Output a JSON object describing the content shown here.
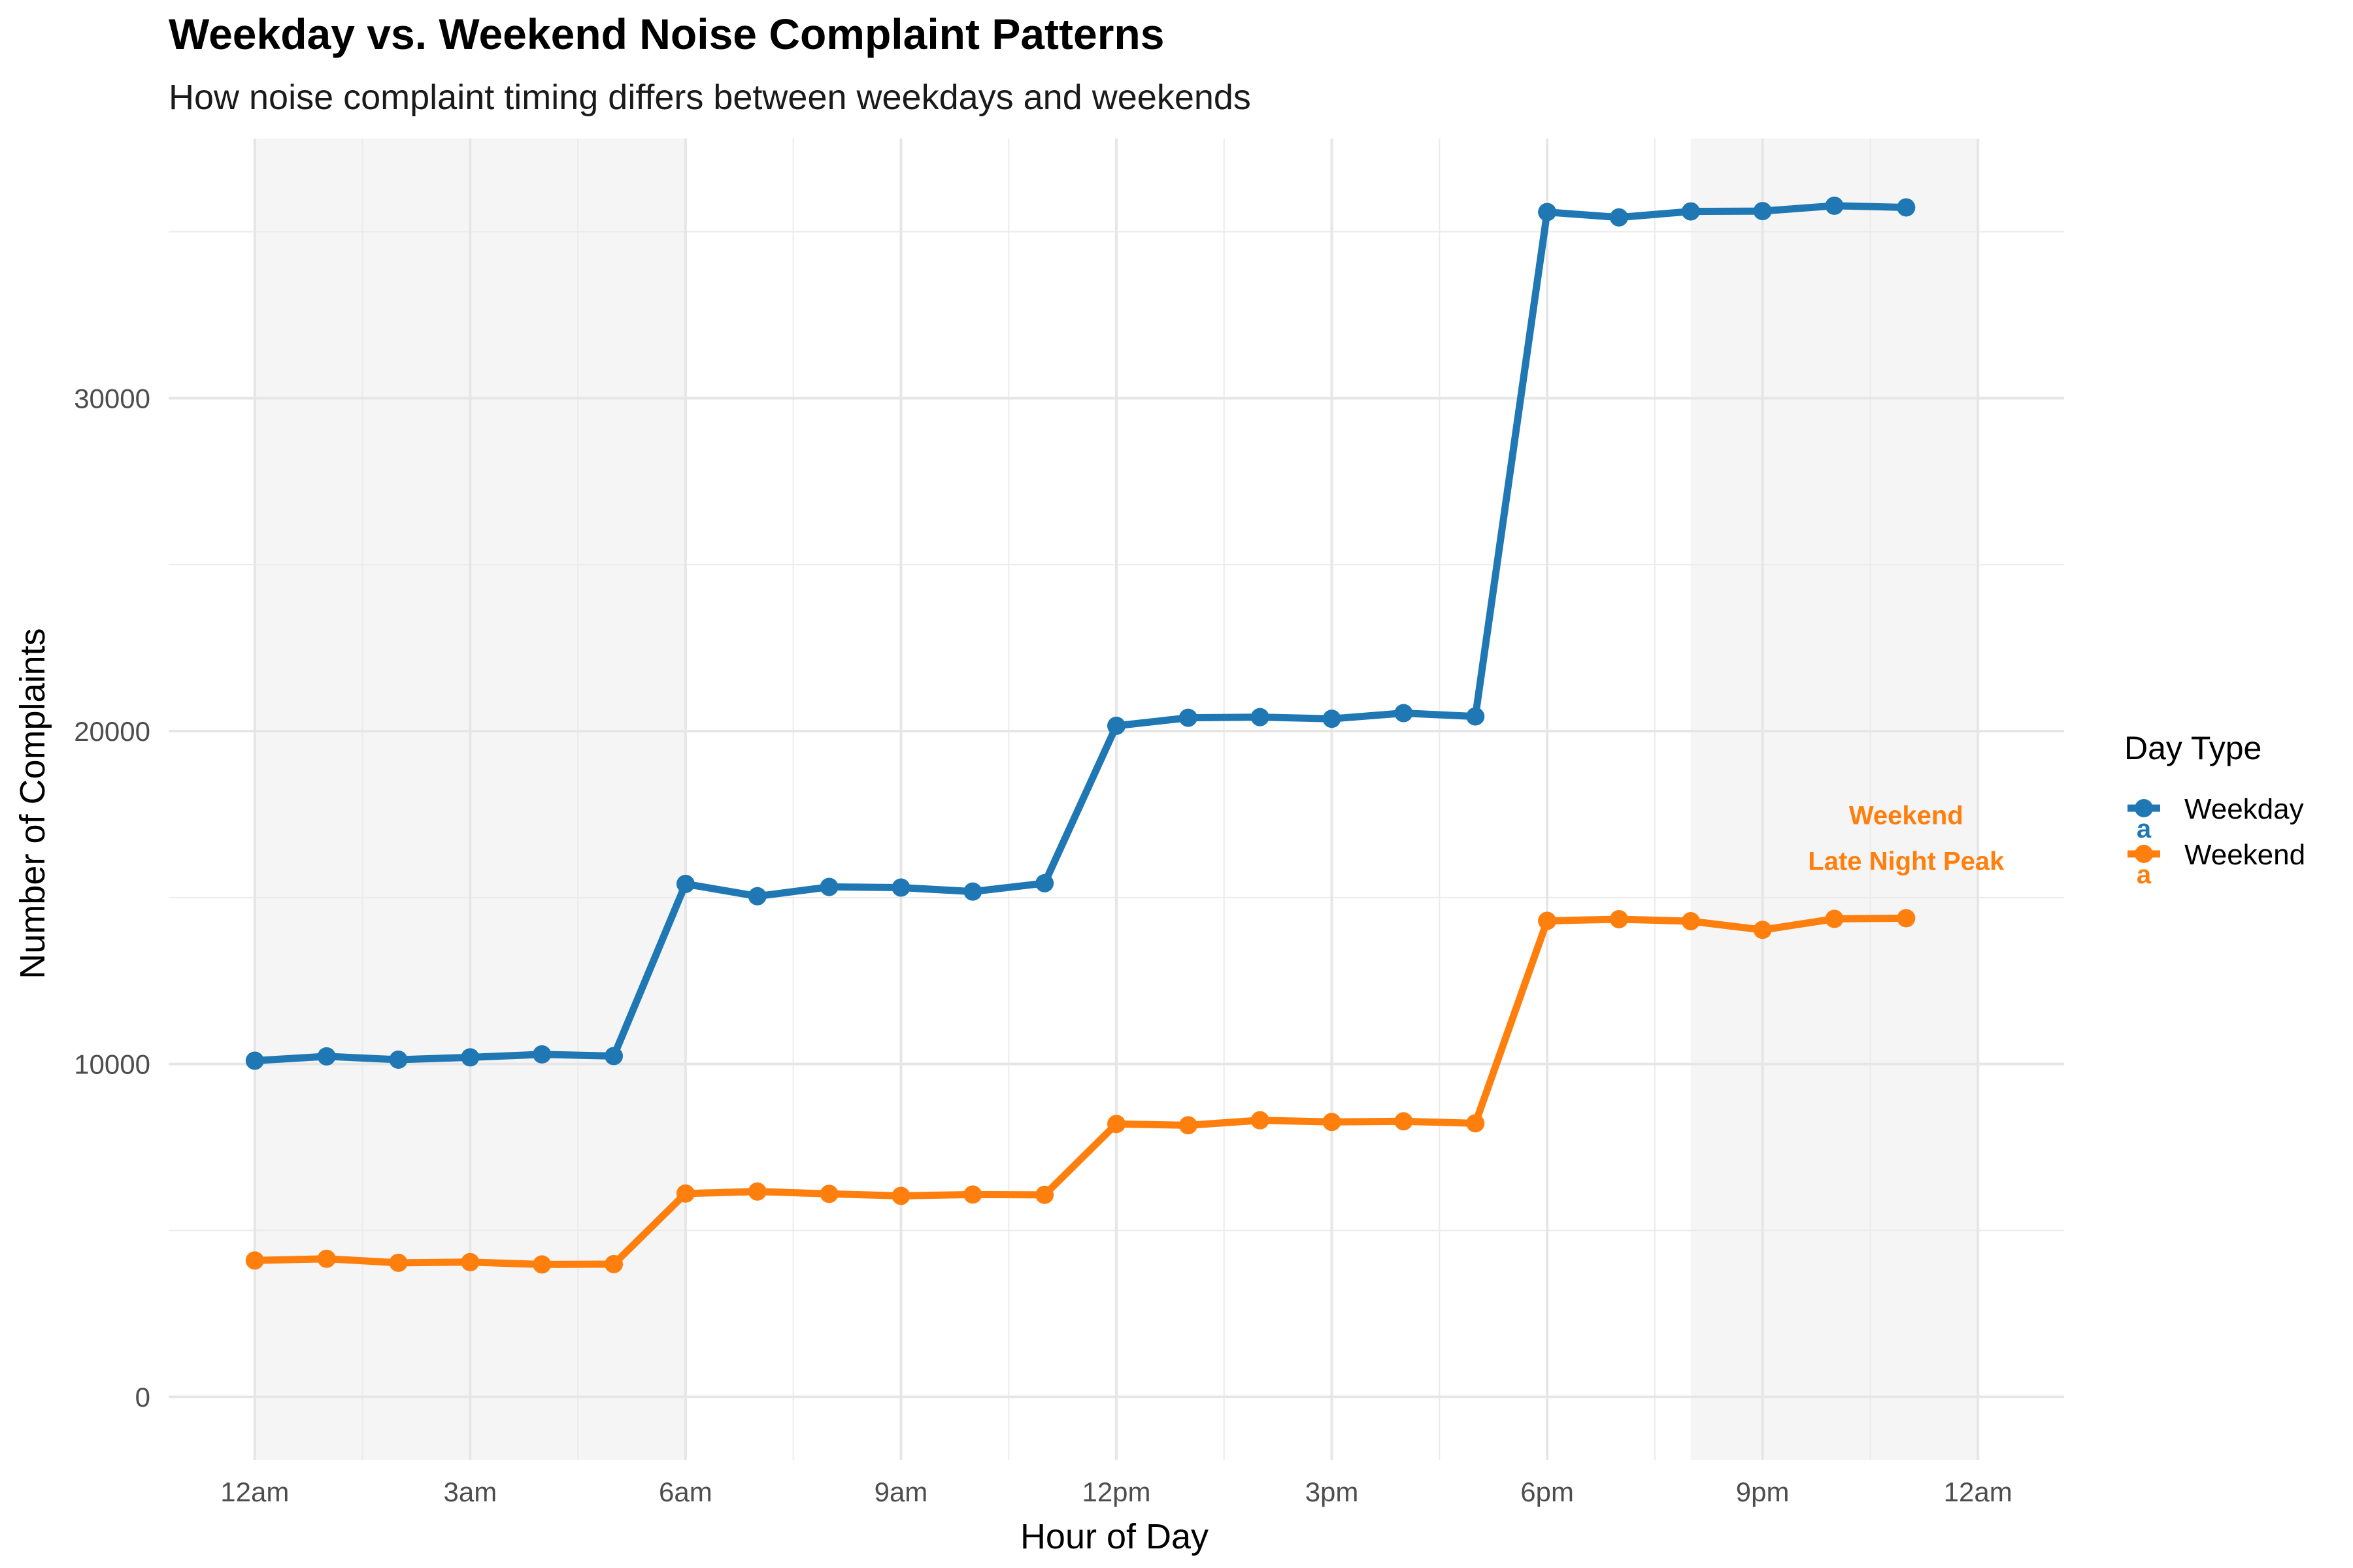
{
  "chart_data": {
    "type": "line",
    "title": "Weekday vs. Weekend Noise Complaint Patterns",
    "subtitle": "How noise complaint timing differs between weekdays and weekends",
    "xlabel": "Hour of Day",
    "ylabel": "Number of Complaints",
    "x": [
      0,
      1,
      2,
      3,
      4,
      5,
      6,
      7,
      8,
      9,
      10,
      11,
      12,
      13,
      14,
      15,
      16,
      17,
      18,
      19,
      20,
      21,
      22,
      23
    ],
    "xlim": [
      -1.2,
      25.2
    ],
    "ylim": [
      -1900,
      37800
    ],
    "x_ticks": [
      {
        "value": 0,
        "label": "12am"
      },
      {
        "value": 3,
        "label": "3am"
      },
      {
        "value": 6,
        "label": "6am"
      },
      {
        "value": 9,
        "label": "9am"
      },
      {
        "value": 12,
        "label": "12pm"
      },
      {
        "value": 15,
        "label": "3pm"
      },
      {
        "value": 18,
        "label": "6pm"
      },
      {
        "value": 21,
        "label": "9pm"
      },
      {
        "value": 24,
        "label": "12am"
      }
    ],
    "y_ticks": [
      {
        "value": 0,
        "label": "0"
      },
      {
        "value": 10000,
        "label": "10000"
      },
      {
        "value": 20000,
        "label": "20000"
      },
      {
        "value": 30000,
        "label": "30000"
      }
    ],
    "y_minor_ticks": [
      5000,
      15000,
      25000,
      35000
    ],
    "grid": true,
    "shaded_ranges": [
      [
        0,
        6
      ],
      [
        20,
        24
      ]
    ],
    "shade_color": "#f5f5f5",
    "series": [
      {
        "name": "Weekday",
        "color": "#1f77b4",
        "values": [
          10100,
          10230,
          10130,
          10200,
          10290,
          10240,
          15410,
          15040,
          15320,
          15300,
          15180,
          15430,
          20160,
          20400,
          20420,
          20370,
          20540,
          20440,
          35590,
          35430,
          35610,
          35620,
          35780,
          35730
        ]
      },
      {
        "name": "Weekend",
        "color": "#ff7f0e",
        "values": [
          4100,
          4150,
          4030,
          4050,
          3980,
          3990,
          6110,
          6170,
          6100,
          6040,
          6080,
          6070,
          8200,
          8160,
          8310,
          8260,
          8280,
          8220,
          14300,
          14350,
          14290,
          14030,
          14360,
          14380
        ]
      }
    ],
    "annotation": {
      "lines": [
        "Weekend",
        "Late Night Peak"
      ],
      "x": 23,
      "y": 17200,
      "color": "#ff7f0e"
    },
    "legend": {
      "title": "Day Type",
      "position": "right",
      "entries": [
        {
          "label": "Weekday",
          "color": "#1f77b4",
          "glyph": "a"
        },
        {
          "label": "Weekend",
          "color": "#ff7f0e",
          "glyph": "a"
        }
      ]
    }
  }
}
